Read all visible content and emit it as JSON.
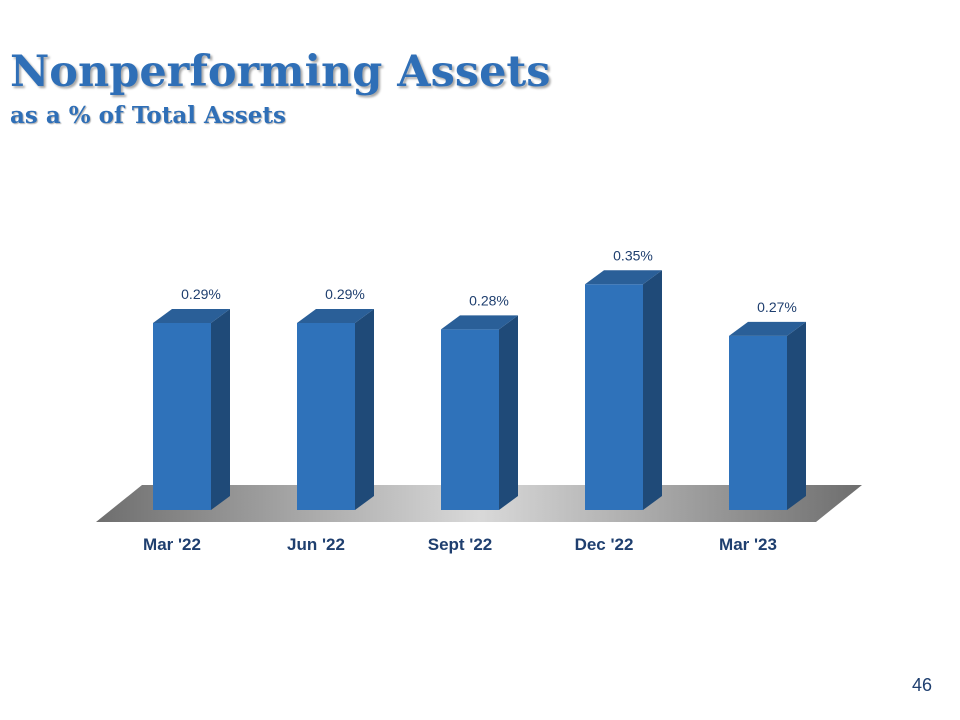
{
  "slide": {
    "title": "Nonperforming Assets",
    "subtitle": "as a % of Total Assets",
    "page_number": "46"
  },
  "colors": {
    "title": "#2f6fb7",
    "bar_front": "#2f72ba",
    "bar_side": "#1f4a78",
    "bar_top": "#2a5f98",
    "label": "#1f3f6f"
  },
  "chart_data": {
    "type": "bar",
    "categories": [
      "Mar '22",
      "Jun '22",
      "Sept '22",
      "Dec '22",
      "Mar '23"
    ],
    "values": [
      0.29,
      0.29,
      0.28,
      0.35,
      0.27
    ],
    "data_labels": [
      "0.29%",
      "0.29%",
      "0.28%",
      "0.35%",
      "0.27%"
    ],
    "title": "",
    "xlabel": "",
    "ylabel": "",
    "ylim": [
      0,
      0.35
    ],
    "grid": false,
    "legend": "none",
    "style": "3d-column"
  }
}
